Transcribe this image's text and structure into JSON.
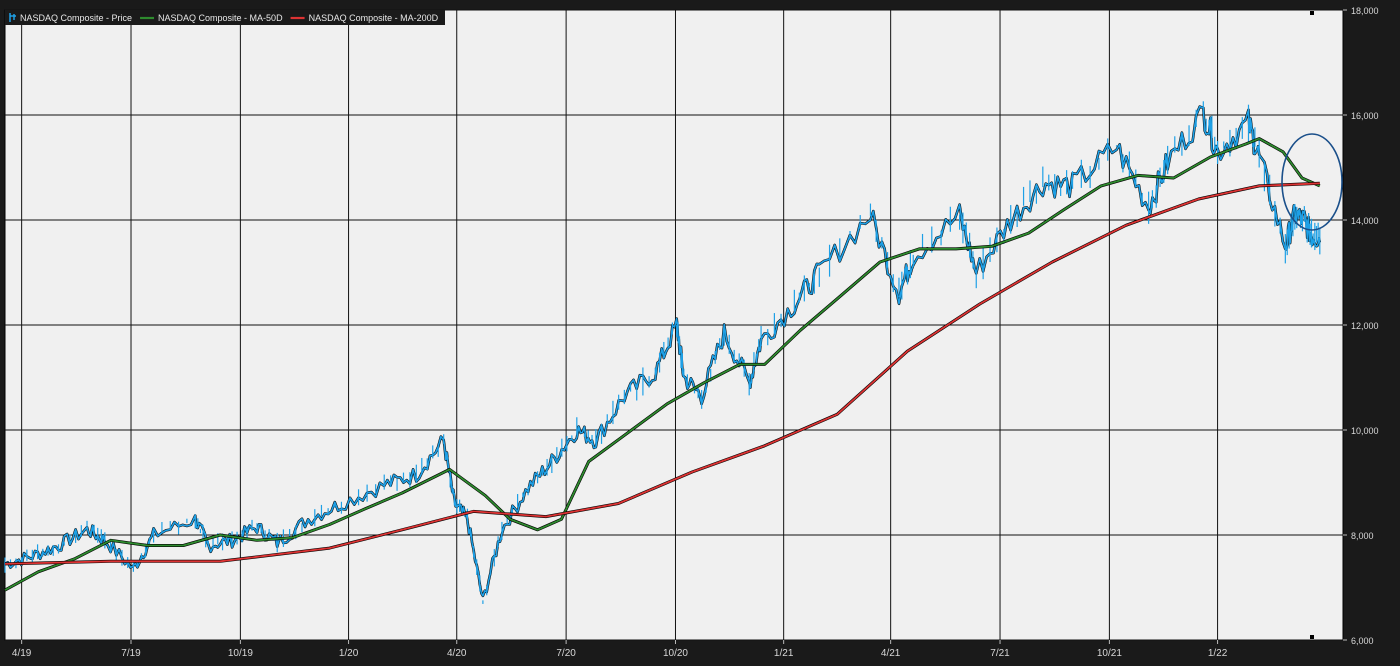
{
  "chart_data": {
    "type": "line",
    "legend": [
      {
        "label": "NASDAQ Composite - Price",
        "color": "#1ea0e6",
        "icon": "candlestick-icon"
      },
      {
        "label": "NASDAQ Composite - MA-50D",
        "color": "#2e8b2e",
        "icon": "line-swatch-icon"
      },
      {
        "label": "NASDAQ Composite - MA-200D",
        "color": "#dd3333",
        "icon": "line-swatch-icon"
      }
    ],
    "legend_position": "top-left",
    "x_tick_labels": [
      "4/19",
      "7/19",
      "10/19",
      "1/20",
      "4/20",
      "7/20",
      "10/20",
      "1/21",
      "4/21",
      "7/21",
      "10/21",
      "1/22"
    ],
    "y_ticks": [
      6000,
      8000,
      10000,
      12000,
      14000,
      16000,
      18000
    ],
    "y_tick_labels": [
      "6,000",
      "8,000",
      "10,000",
      "12,000",
      "14,000",
      "16,000",
      "18,000"
    ],
    "ylim": [
      6000,
      18000
    ],
    "y_axis_side": "right",
    "grid": true,
    "x_time_range": [
      "2019-02-15",
      "2022-02-26"
    ],
    "series": [
      {
        "name": "NASDAQ Composite - Price",
        "color": "#1ea0e6",
        "points": [
          [
            "2019-02-15",
            7450
          ],
          [
            "2019-03-10",
            7600
          ],
          [
            "2019-04-01",
            7800
          ],
          [
            "2019-04-25",
            8100
          ],
          [
            "2019-05-10",
            7900
          ],
          [
            "2019-06-03",
            7350
          ],
          [
            "2019-06-20",
            8000
          ],
          [
            "2019-07-25",
            8300
          ],
          [
            "2019-08-05",
            7800
          ],
          [
            "2019-08-25",
            7900
          ],
          [
            "2019-09-15",
            8150
          ],
          [
            "2019-10-02",
            7850
          ],
          [
            "2019-10-28",
            8300
          ],
          [
            "2019-11-25",
            8600
          ],
          [
            "2019-12-31",
            8950
          ],
          [
            "2020-01-27",
            9150
          ],
          [
            "2020-02-19",
            9800
          ],
          [
            "2020-02-28",
            8600
          ],
          [
            "2020-03-10",
            8300
          ],
          [
            "2020-03-23",
            6750
          ],
          [
            "2020-04-08",
            8100
          ],
          [
            "2020-04-30",
            8900
          ],
          [
            "2020-05-20",
            9400
          ],
          [
            "2020-06-10",
            10000
          ],
          [
            "2020-06-26",
            9800
          ],
          [
            "2020-07-20",
            10650
          ],
          [
            "2020-08-15",
            11100
          ],
          [
            "2020-09-02",
            12000
          ],
          [
            "2020-09-08",
            11000
          ],
          [
            "2020-09-23",
            10650
          ],
          [
            "2020-10-12",
            11850
          ],
          [
            "2020-11-02",
            10900
          ],
          [
            "2020-11-12",
            11700
          ],
          [
            "2020-12-10",
            12400
          ],
          [
            "2020-12-31",
            13000
          ],
          [
            "2021-02-12",
            14100
          ],
          [
            "2021-03-08",
            12600
          ],
          [
            "2021-03-20",
            13300
          ],
          [
            "2021-04-28",
            14100
          ],
          [
            "2021-05-12",
            13000
          ],
          [
            "2021-06-10",
            14000
          ],
          [
            "2021-07-07",
            14700
          ],
          [
            "2021-08-01",
            14650
          ],
          [
            "2021-09-07",
            15400
          ],
          [
            "2021-10-04",
            14250
          ],
          [
            "2021-10-20",
            15100
          ],
          [
            "2021-11-19",
            16050
          ],
          [
            "2021-12-01",
            15300
          ],
          [
            "2021-12-27",
            15850
          ],
          [
            "2022-01-05",
            15200
          ],
          [
            "2022-01-27",
            13500
          ],
          [
            "2022-02-04",
            14100
          ],
          [
            "2022-02-12",
            14000
          ],
          [
            "2022-02-18",
            13700
          ],
          [
            "2022-02-25",
            13650
          ]
        ]
      },
      {
        "name": "NASDAQ Composite - MA-50D",
        "color": "#2e8b2e",
        "points": [
          [
            "2019-02-15",
            6950
          ],
          [
            "2019-03-15",
            7300
          ],
          [
            "2019-04-15",
            7550
          ],
          [
            "2019-05-15",
            7900
          ],
          [
            "2019-06-15",
            7800
          ],
          [
            "2019-07-15",
            7800
          ],
          [
            "2019-08-15",
            8000
          ],
          [
            "2019-09-15",
            7900
          ],
          [
            "2019-10-15",
            7950
          ],
          [
            "2019-11-15",
            8200
          ],
          [
            "2019-12-15",
            8500
          ],
          [
            "2020-01-15",
            8800
          ],
          [
            "2020-02-24",
            9250
          ],
          [
            "2020-03-25",
            8750
          ],
          [
            "2020-04-15",
            8300
          ],
          [
            "2020-05-08",
            8100
          ],
          [
            "2020-05-28",
            8300
          ],
          [
            "2020-06-20",
            9400
          ],
          [
            "2020-07-20",
            9900
          ],
          [
            "2020-08-25",
            10500
          ],
          [
            "2020-09-25",
            10900
          ],
          [
            "2020-10-25",
            11250
          ],
          [
            "2020-11-15",
            11250
          ],
          [
            "2020-12-15",
            11900
          ],
          [
            "2021-01-15",
            12500
          ],
          [
            "2021-02-20",
            13200
          ],
          [
            "2021-03-25",
            13450
          ],
          [
            "2021-04-25",
            13450
          ],
          [
            "2021-05-25",
            13500
          ],
          [
            "2021-06-25",
            13750
          ],
          [
            "2021-07-25",
            14200
          ],
          [
            "2021-08-25",
            14650
          ],
          [
            "2021-09-25",
            14850
          ],
          [
            "2021-10-25",
            14800
          ],
          [
            "2021-11-25",
            15200
          ],
          [
            "2021-12-25",
            15450
          ],
          [
            "2022-01-05",
            15550
          ],
          [
            "2022-01-25",
            15300
          ],
          [
            "2022-02-10",
            14800
          ],
          [
            "2022-02-25",
            14650
          ]
        ]
      },
      {
        "name": "NASDAQ Composite - MA-200D",
        "color": "#dd3333",
        "points": [
          [
            "2019-02-15",
            7450
          ],
          [
            "2019-05-15",
            7500
          ],
          [
            "2019-08-15",
            7500
          ],
          [
            "2019-11-15",
            7750
          ],
          [
            "2020-01-15",
            8100
          ],
          [
            "2020-03-15",
            8450
          ],
          [
            "2020-05-15",
            8350
          ],
          [
            "2020-07-15",
            8600
          ],
          [
            "2020-09-15",
            9200
          ],
          [
            "2020-11-15",
            9700
          ],
          [
            "2021-01-15",
            10300
          ],
          [
            "2021-03-15",
            11500
          ],
          [
            "2021-05-15",
            12400
          ],
          [
            "2021-07-15",
            13200
          ],
          [
            "2021-09-15",
            13900
          ],
          [
            "2021-11-15",
            14400
          ],
          [
            "2022-01-05",
            14650
          ],
          [
            "2022-02-25",
            14700
          ]
        ]
      }
    ],
    "annotation": {
      "shape": "ellipse",
      "color": "#1a4f8a",
      "icon": "highlight-circle-icon"
    }
  }
}
